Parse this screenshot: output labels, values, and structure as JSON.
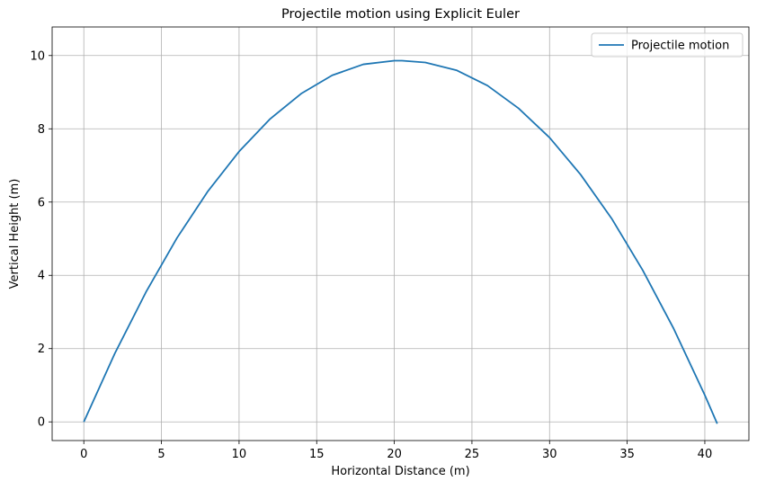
{
  "chart_data": {
    "type": "line",
    "title": "Projectile motion using Explicit Euler",
    "xlabel": "Horizontal Distance (m)",
    "ylabel": "Vertical Height (m)",
    "xlim": [
      -2.04,
      42.84
    ],
    "ylim": [
      -0.51,
      10.78
    ],
    "xticks": [
      0,
      5,
      10,
      15,
      20,
      25,
      30,
      35,
      40
    ],
    "yticks": [
      0,
      2,
      4,
      6,
      8,
      10
    ],
    "grid": true,
    "legend_position": "top-right",
    "series": [
      {
        "name": "Projectile motion",
        "color": "#1f77b4",
        "x": [
          0,
          2,
          4,
          6,
          8,
          10,
          12,
          14,
          16,
          18,
          20,
          20.5,
          22,
          24,
          26,
          28,
          30,
          32,
          34,
          36,
          38,
          40,
          40.8
        ],
        "y": [
          0,
          1.87,
          3.54,
          5.02,
          6.3,
          7.38,
          8.27,
          8.96,
          9.46,
          9.76,
          9.86,
          9.86,
          9.81,
          9.6,
          9.18,
          8.56,
          7.76,
          6.75,
          5.55,
          4.14,
          2.54,
          0.73,
          -0.05
        ]
      }
    ]
  }
}
